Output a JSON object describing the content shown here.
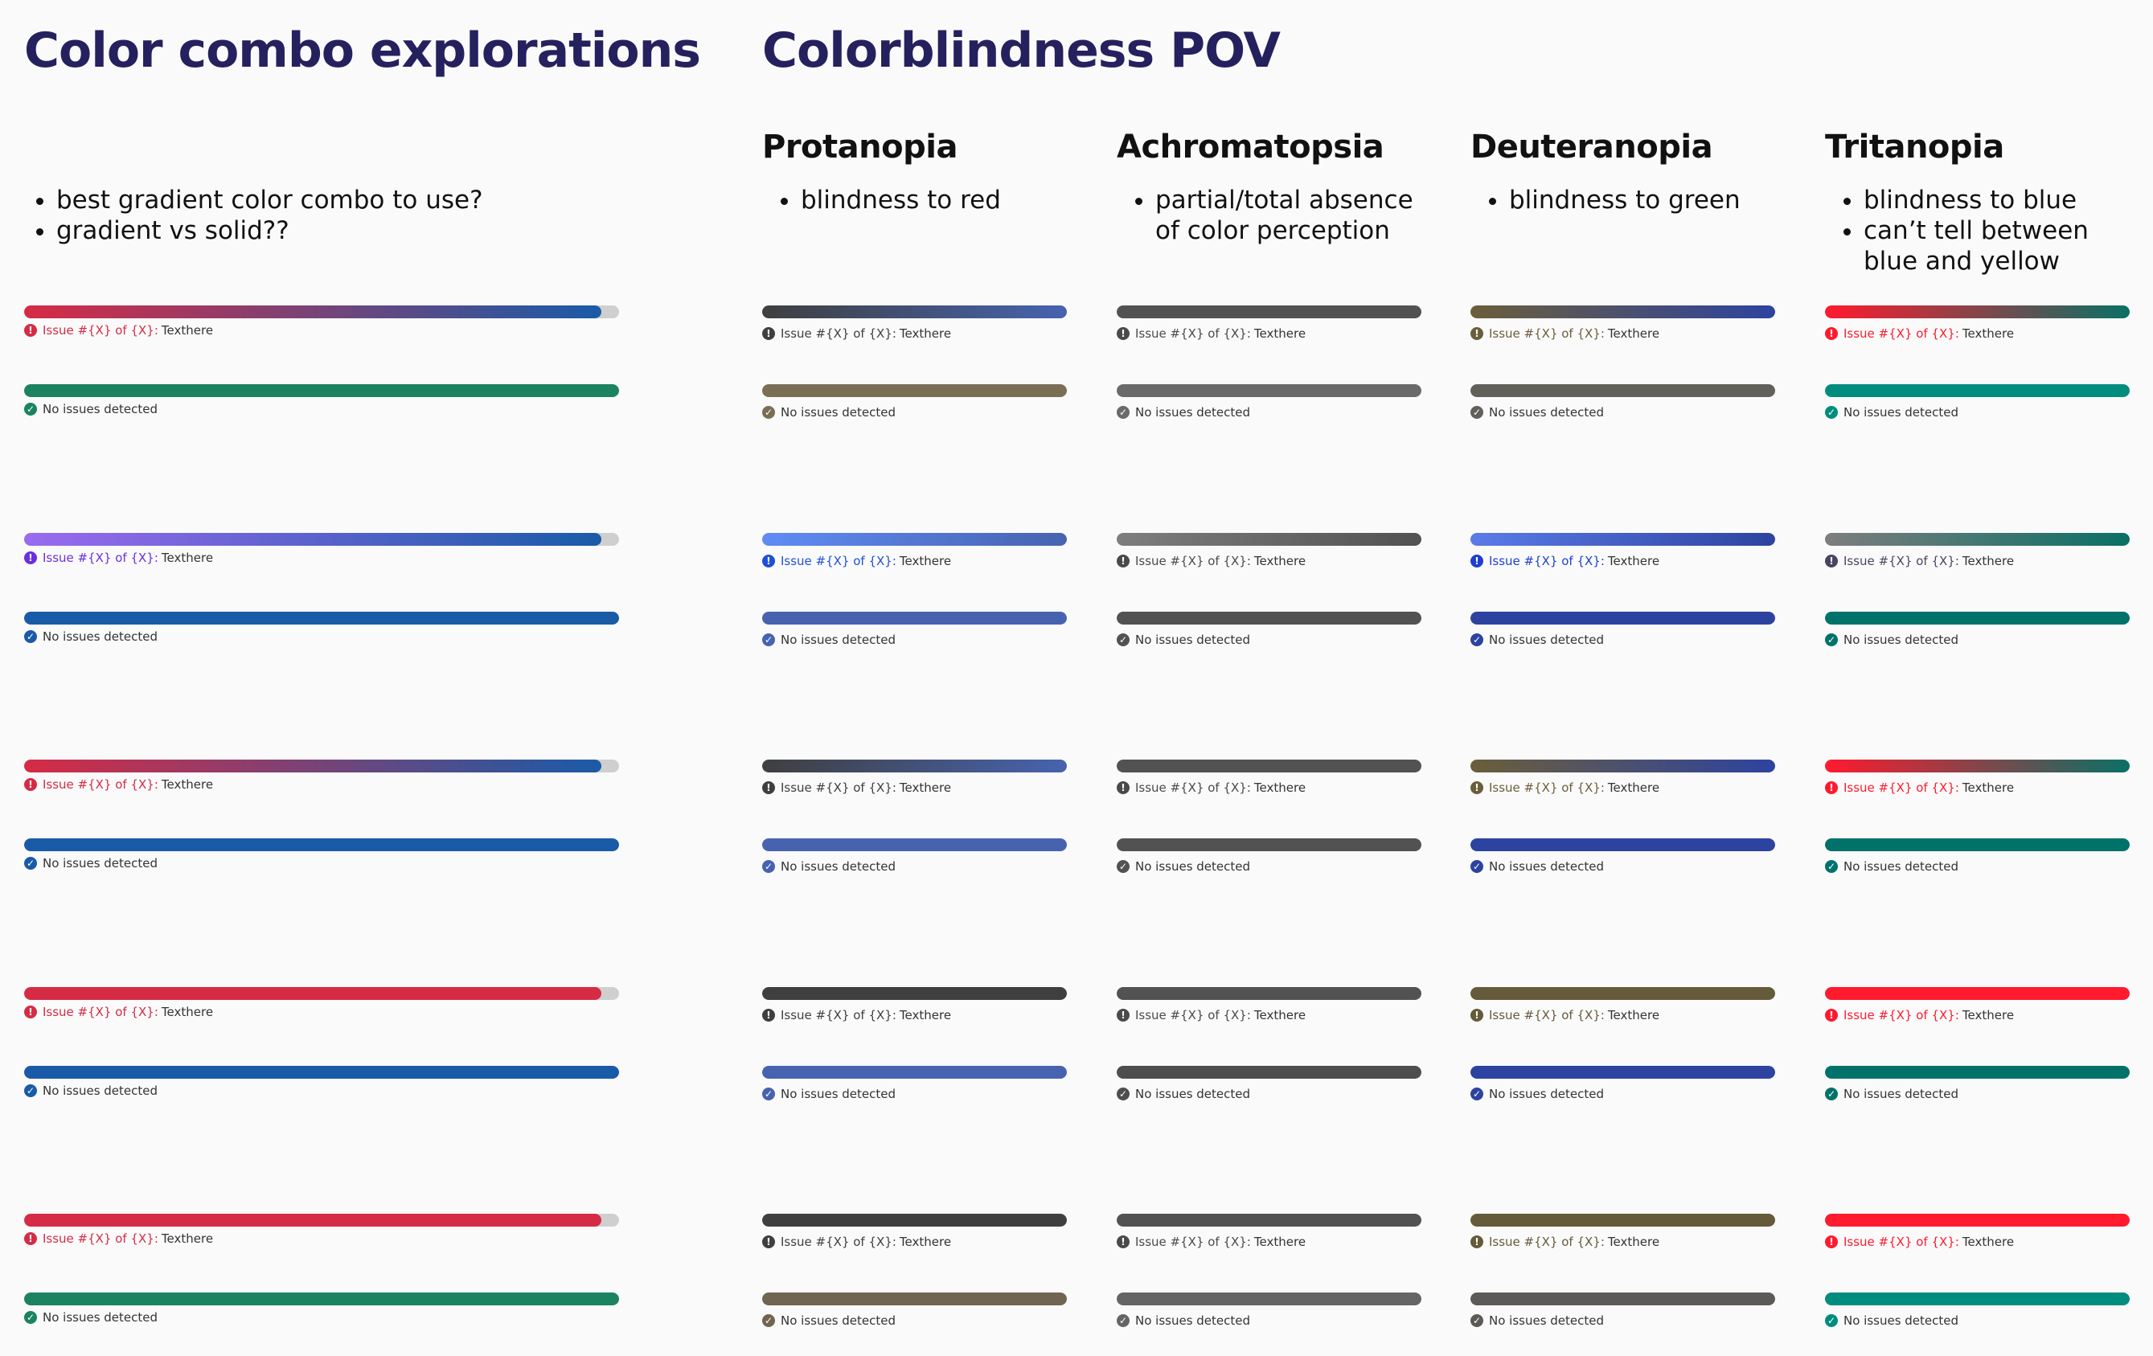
{
  "left_title": "Color combo explorations",
  "right_title": "Colorblindness POV",
  "issue_label": "Issue #{X} of {X}:",
  "issue_text": "Texthere",
  "success_text": "No issues detected",
  "track_color": "#cfcfcf",
  "columns": [
    {
      "heading": "",
      "notes": [
        "best gradient color combo to use?",
        "gradient vs solid??"
      ],
      "issue_fill_percent": 97,
      "rows": [
        {
          "issue_from": "#d62b45",
          "issue_to": "#1a5ba8",
          "issue_accent": "#d62b45",
          "success": "#1b8360"
        },
        {
          "issue_from": "#9b6af0",
          "issue_to": "#1a5ba8",
          "issue_accent": "#6a2fe0",
          "success": "#1a5ba8"
        },
        {
          "issue_from": "#d62b45",
          "issue_to": "#1a5ba8",
          "issue_accent": "#d62b45",
          "success": "#1a5ba8"
        },
        {
          "issue_from": "#d62b45",
          "issue_to": "#d62b45",
          "issue_accent": "#d62b45",
          "success": "#1a5ba8"
        },
        {
          "issue_from": "#d62b45",
          "issue_to": "#d62b45",
          "issue_accent": "#d62b45",
          "success": "#1b8360"
        }
      ]
    },
    {
      "heading": "Protanopia",
      "notes": [
        "blindness to red"
      ],
      "issue_fill_percent": 100,
      "rows": [
        {
          "issue_from": "#3f3f3f",
          "issue_to": "#4763b0",
          "issue_accent": "#3f3f3f",
          "success": "#7a6f55"
        },
        {
          "issue_from": "#5f8cf5",
          "issue_to": "#4763b0",
          "issue_accent": "#1f4fd8",
          "success": "#4763b0"
        },
        {
          "issue_from": "#3f3f3f",
          "issue_to": "#4763b0",
          "issue_accent": "#3f3f3f",
          "success": "#4763b0"
        },
        {
          "issue_from": "#3f3f3f",
          "issue_to": "#3f3f3f",
          "issue_accent": "#3f3f3f",
          "success": "#4763b0"
        },
        {
          "issue_from": "#3f3f3f",
          "issue_to": "#3f3f3f",
          "issue_accent": "#3f3f3f",
          "success": "#6f6550"
        }
      ]
    },
    {
      "heading": "Achromatopsia",
      "notes": [
        "partial/total absence of color perception"
      ],
      "issue_fill_percent": 100,
      "rows": [
        {
          "issue_from": "#525252",
          "issue_to": "#525252",
          "issue_accent": "#4a4a4a",
          "success": "#6a6a6a"
        },
        {
          "issue_from": "#7e7e7e",
          "issue_to": "#525252",
          "issue_accent": "#4a4a4a",
          "success": "#525252"
        },
        {
          "issue_from": "#525252",
          "issue_to": "#525252",
          "issue_accent": "#4a4a4a",
          "success": "#525252"
        },
        {
          "issue_from": "#525252",
          "issue_to": "#525252",
          "issue_accent": "#4a4a4a",
          "success": "#4e4e4e"
        },
        {
          "issue_from": "#525252",
          "issue_to": "#525252",
          "issue_accent": "#4a4a4a",
          "success": "#656565"
        }
      ]
    },
    {
      "heading": "Deuteranopia",
      "notes": [
        "blindness to green"
      ],
      "issue_fill_percent": 100,
      "rows": [
        {
          "issue_from": "#6b5e3a",
          "issue_to": "#2d43a0",
          "issue_accent": "#6b5e3a",
          "success": "#62605a"
        },
        {
          "issue_from": "#5b7be8",
          "issue_to": "#2d43a0",
          "issue_accent": "#1f3fd0",
          "success": "#2d43a0"
        },
        {
          "issue_from": "#6b5e3a",
          "issue_to": "#2d43a0",
          "issue_accent": "#6b5e3a",
          "success": "#2d43a0"
        },
        {
          "issue_from": "#655a3a",
          "issue_to": "#655a3a",
          "issue_accent": "#655a3a",
          "success": "#2d43a0"
        },
        {
          "issue_from": "#655a3a",
          "issue_to": "#655a3a",
          "issue_accent": "#655a3a",
          "success": "#5c5a56"
        }
      ]
    },
    {
      "heading": "Tritanopia",
      "notes": [
        "blindness to blue",
        "can’t tell between blue and yellow"
      ],
      "issue_fill_percent": 100,
      "rows": [
        {
          "issue_from": "#ff1a2e",
          "issue_to": "#0a7066",
          "issue_accent": "#ff1a2e",
          "success": "#008d7e"
        },
        {
          "issue_from": "#7e7e7e",
          "issue_to": "#0a7066",
          "issue_accent": "#4a4460",
          "success": "#00726a"
        },
        {
          "issue_from": "#ff1a2e",
          "issue_to": "#0a7066",
          "issue_accent": "#ff1a2e",
          "success": "#00726a"
        },
        {
          "issue_from": "#ff1a2e",
          "issue_to": "#ff1a2e",
          "issue_accent": "#ff1a2e",
          "success": "#00726a"
        },
        {
          "issue_from": "#ff1a2e",
          "issue_to": "#ff1a2e",
          "issue_accent": "#ff1a2e",
          "success": "#008d7e"
        }
      ]
    }
  ]
}
